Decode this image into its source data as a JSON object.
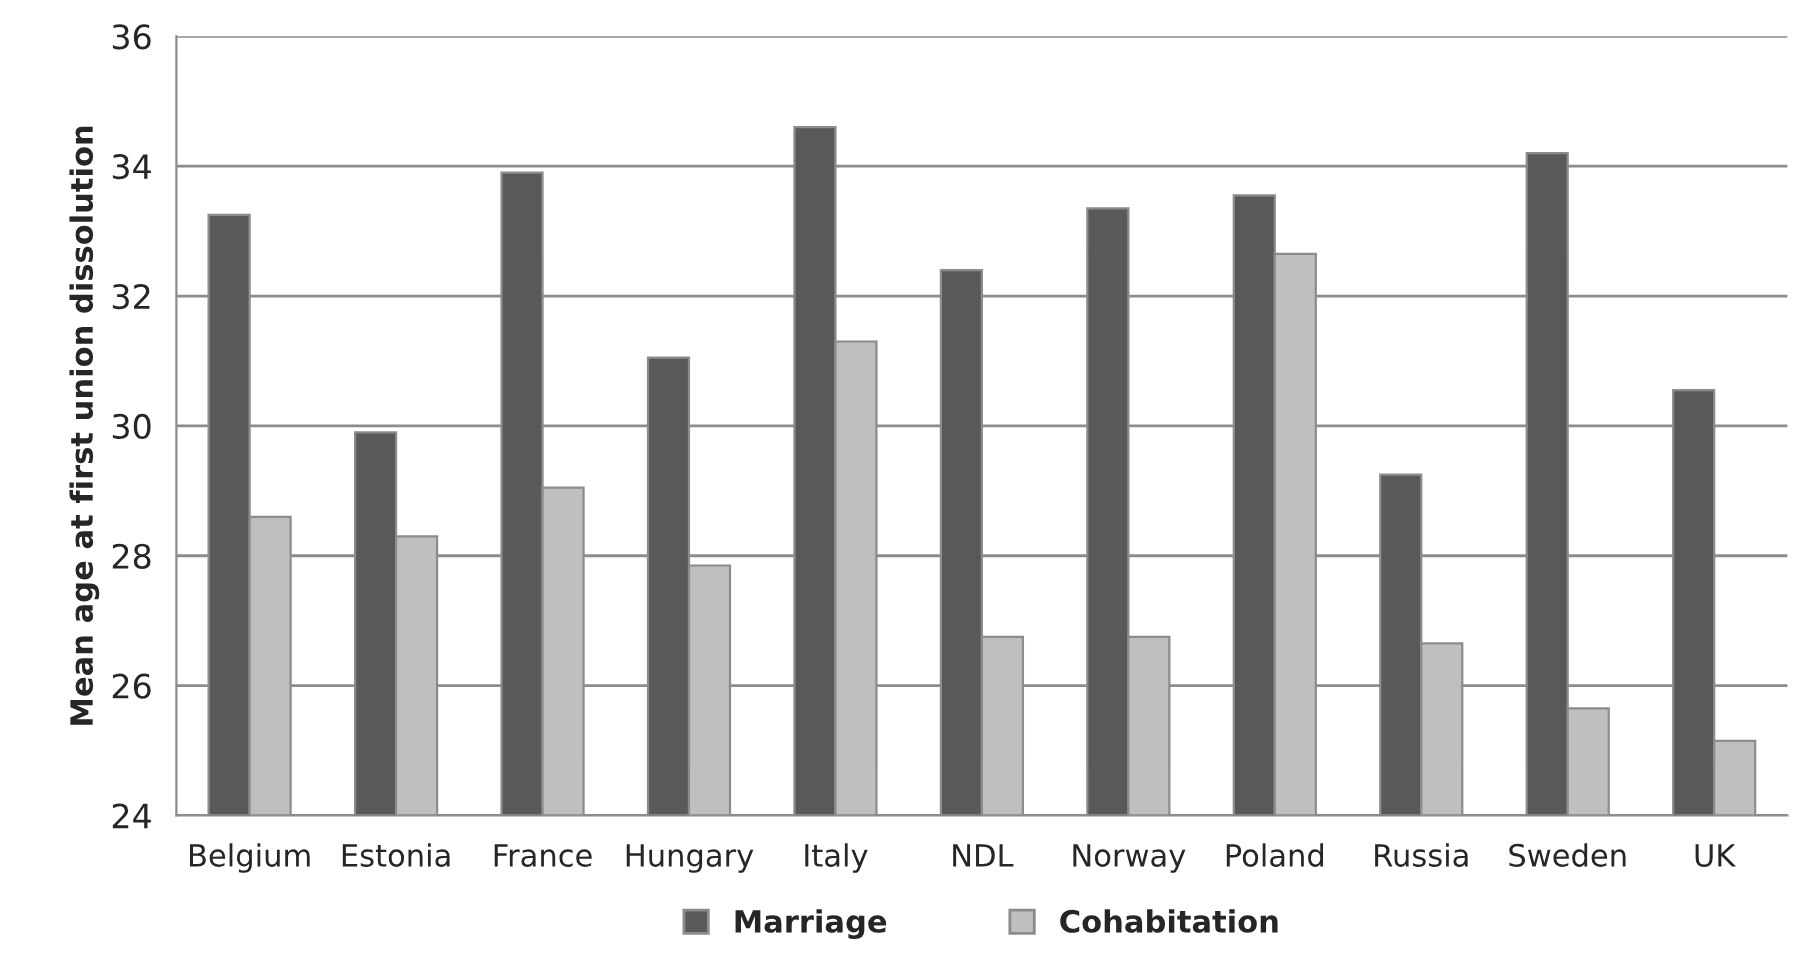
{
  "chart_data": {
    "type": "bar",
    "ylabel": "Mean age at first union dissolution",
    "categories": [
      "Belgium",
      "Estonia",
      "France",
      "Hungary",
      "Italy",
      "NDL",
      "Norway",
      "Poland",
      "Russia",
      "Sweden",
      "UK"
    ],
    "series": [
      {
        "name": "Marriage",
        "color": "#595959",
        "values": [
          33.25,
          29.9,
          33.9,
          31.05,
          34.6,
          32.4,
          33.35,
          33.55,
          29.25,
          34.2,
          30.55
        ]
      },
      {
        "name": "Cohabitation",
        "color": "#bfbfbf",
        "values": [
          28.6,
          28.3,
          29.05,
          27.85,
          31.3,
          26.75,
          26.75,
          32.65,
          26.65,
          25.65,
          25.15
        ]
      }
    ],
    "ylim": [
      24,
      36
    ],
    "yticks": [
      24,
      26,
      28,
      30,
      32,
      34,
      36
    ],
    "grid": "y",
    "legend": "bottom"
  }
}
